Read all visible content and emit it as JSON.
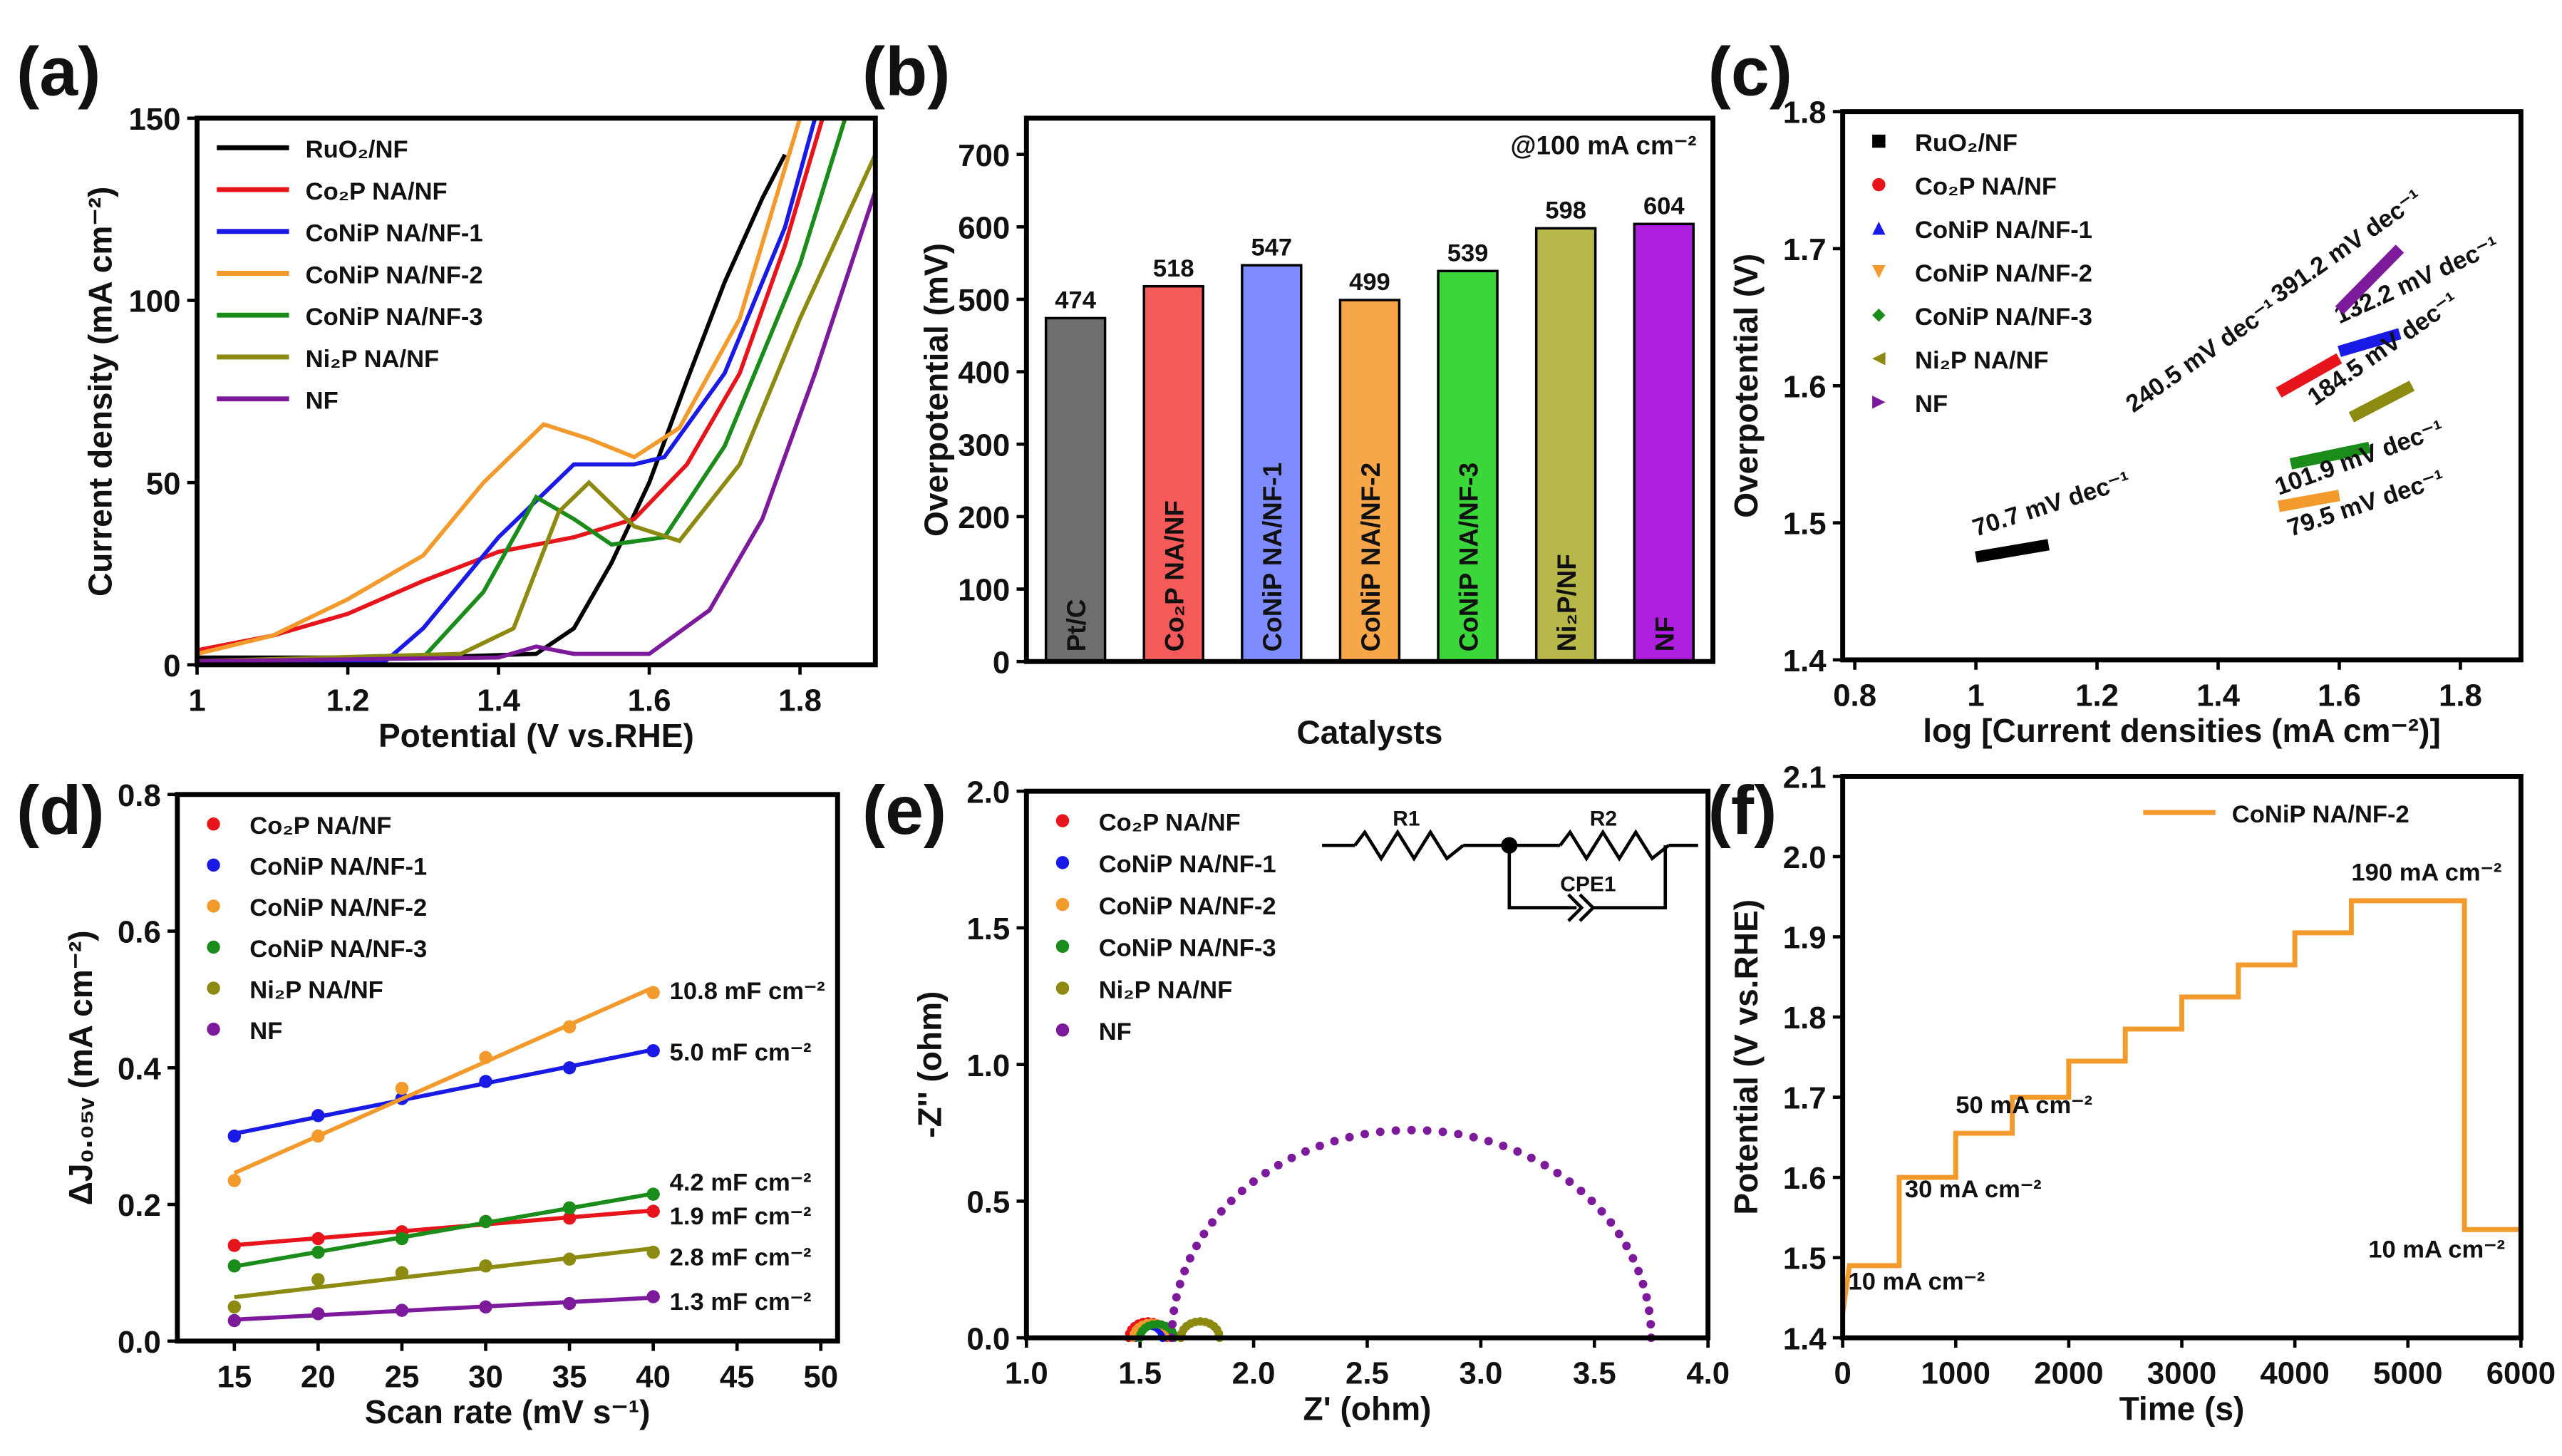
{
  "colors": {
    "RuO2": "#000000",
    "Co2P": "#e8141b",
    "CoNiP1": "#1a1ae6",
    "CoNiP2": "#f39a2c",
    "CoNiP3": "#1a8c1a",
    "Ni2P": "#8c8a10",
    "NF": "#7d1a9c"
  },
  "chart_data": [
    {
      "panel": "(a)",
      "type": "line",
      "xlabel": "Potential (V vs.RHE)",
      "ylabel": "Current density (mA cm⁻²)",
      "xlim": [
        1.0,
        1.9
      ],
      "ylim": [
        0,
        150
      ],
      "xticks": [
        1.0,
        1.2,
        1.4,
        1.6,
        1.8
      ],
      "yticks": [
        0,
        50,
        100,
        150
      ],
      "legend": "top-left",
      "series": [
        {
          "name": "RuO₂/NF",
          "color": "#000000",
          "points": [
            [
              1.0,
              2
            ],
            [
              1.3,
              2
            ],
            [
              1.45,
              3
            ],
            [
              1.5,
              10
            ],
            [
              1.55,
              28
            ],
            [
              1.6,
              50
            ],
            [
              1.65,
              78
            ],
            [
              1.7,
              105
            ],
            [
              1.75,
              128
            ],
            [
              1.78,
              140
            ]
          ]
        },
        {
          "name": "Co₂P NA/NF",
          "color": "#e8141b",
          "points": [
            [
              1.0,
              4
            ],
            [
              1.1,
              8
            ],
            [
              1.2,
              14
            ],
            [
              1.3,
              23
            ],
            [
              1.4,
              31
            ],
            [
              1.5,
              35
            ],
            [
              1.58,
              40
            ],
            [
              1.65,
              55
            ],
            [
              1.72,
              80
            ],
            [
              1.78,
              115
            ],
            [
              1.83,
              150
            ]
          ]
        },
        {
          "name": "CoNiP NA/NF-1",
          "color": "#1a1ae6",
          "points": [
            [
              1.0,
              1
            ],
            [
              1.25,
              1
            ],
            [
              1.3,
              10
            ],
            [
              1.4,
              35
            ],
            [
              1.5,
              55
            ],
            [
              1.58,
              55
            ],
            [
              1.62,
              57
            ],
            [
              1.7,
              80
            ],
            [
              1.78,
              120
            ],
            [
              1.82,
              150
            ]
          ]
        },
        {
          "name": "CoNiP NA/NF-2",
          "color": "#f39a2c",
          "points": [
            [
              1.0,
              3
            ],
            [
              1.1,
              8
            ],
            [
              1.2,
              18
            ],
            [
              1.3,
              30
            ],
            [
              1.38,
              50
            ],
            [
              1.46,
              66
            ],
            [
              1.52,
              62
            ],
            [
              1.58,
              57
            ],
            [
              1.64,
              65
            ],
            [
              1.72,
              95
            ],
            [
              1.8,
              150
            ]
          ]
        },
        {
          "name": "CoNiP NA/NF-3",
          "color": "#1a8c1a",
          "points": [
            [
              1.0,
              1
            ],
            [
              1.3,
              2
            ],
            [
              1.38,
              20
            ],
            [
              1.45,
              46
            ],
            [
              1.5,
              40
            ],
            [
              1.55,
              33
            ],
            [
              1.62,
              35
            ],
            [
              1.7,
              60
            ],
            [
              1.8,
              110
            ],
            [
              1.86,
              150
            ]
          ]
        },
        {
          "name": "Ni₂P NA/NF",
          "color": "#8c8a10",
          "points": [
            [
              1.0,
              1
            ],
            [
              1.35,
              3
            ],
            [
              1.42,
              10
            ],
            [
              1.48,
              42
            ],
            [
              1.52,
              50
            ],
            [
              1.58,
              38
            ],
            [
              1.64,
              34
            ],
            [
              1.72,
              55
            ],
            [
              1.8,
              95
            ],
            [
              1.9,
              140
            ]
          ]
        },
        {
          "name": "NF",
          "color": "#7d1a9c",
          "points": [
            [
              1.0,
              1
            ],
            [
              1.4,
              2
            ],
            [
              1.45,
              5
            ],
            [
              1.5,
              3
            ],
            [
              1.6,
              3
            ],
            [
              1.68,
              15
            ],
            [
              1.75,
              40
            ],
            [
              1.82,
              80
            ],
            [
              1.9,
              130
            ]
          ]
        }
      ]
    },
    {
      "panel": "(b)",
      "type": "bar",
      "xlabel": "Catalysts",
      "ylabel": "Overpotential (mV)",
      "ylim": [
        0,
        750
      ],
      "yticks": [
        0,
        100,
        200,
        300,
        400,
        500,
        600,
        700
      ],
      "annotation": "@100 mA cm⁻²",
      "categories": [
        "Pt/C",
        "Co₂P NA/NF",
        "CoNiP NA/NF-1",
        "CoNiP NA/NF-2",
        "CoNiP NA/NF-3",
        "Ni₂P/NF",
        "NF"
      ],
      "values": [
        474,
        518,
        547,
        499,
        539,
        598,
        604
      ],
      "bar_colors": [
        "#6e6e6e",
        "#f55a5a",
        "#7f8cff",
        "#f7a64a",
        "#3ad63a",
        "#b8b84a",
        "#b01ee0"
      ]
    },
    {
      "panel": "(c)",
      "type": "line",
      "xlabel": "log [Current densities (mA cm⁻²)]",
      "ylabel": "Overpotential (V)",
      "xlim": [
        0.78,
        1.9
      ],
      "ylim": [
        1.4,
        1.8
      ],
      "xticks": [
        0.8,
        1.0,
        1.2,
        1.4,
        1.6,
        1.8
      ],
      "yticks": [
        1.4,
        1.5,
        1.6,
        1.7,
        1.8
      ],
      "legend": "top-left",
      "series": [
        {
          "name": "RuO₂/NF",
          "color": "#000000",
          "marker": "square",
          "points": [
            [
              1.0,
              1.475
            ],
            [
              1.12,
              1.484
            ]
          ],
          "label": "70.7 mV dec⁻¹",
          "label_at": [
            1.0,
            1.49
          ]
        },
        {
          "name": "Co₂P NA/NF",
          "color": "#e8141b",
          "marker": "circle",
          "points": [
            [
              1.5,
              1.595
            ],
            [
              1.6,
              1.62
            ]
          ],
          "label": "240.5 mV dec⁻¹",
          "label_at": [
            1.26,
            1.58
          ]
        },
        {
          "name": "CoNiP NA/NF-1",
          "color": "#1a1ae6",
          "marker": "triangle-up",
          "points": [
            [
              1.6,
              1.625
            ],
            [
              1.7,
              1.638
            ]
          ],
          "label": "132.2 mV dec⁻¹",
          "label_at": [
            1.6,
            1.645
          ]
        },
        {
          "name": "CoNiP NA/NF-2",
          "color": "#f39a2c",
          "marker": "triangle-down",
          "points": [
            [
              1.5,
              1.512
            ],
            [
              1.6,
              1.52
            ]
          ],
          "label": "79.5 mV dec⁻¹",
          "label_at": [
            1.52,
            1.49
          ]
        },
        {
          "name": "CoNiP NA/NF-3",
          "color": "#1a8c1a",
          "marker": "diamond",
          "points": [
            [
              1.52,
              1.543
            ],
            [
              1.65,
              1.555
            ]
          ],
          "label": "101.9 mV dec⁻¹",
          "label_at": [
            1.5,
            1.52
          ]
        },
        {
          "name": "Ni₂P NA/NF",
          "color": "#8c8a10",
          "marker": "triangle-left",
          "points": [
            [
              1.62,
              1.577
            ],
            [
              1.72,
              1.6
            ]
          ],
          "label": "184.5 mV dec⁻¹",
          "label_at": [
            1.56,
            1.585
          ]
        },
        {
          "name": "NF",
          "color": "#7d1a9c",
          "marker": "triangle-right",
          "points": [
            [
              1.6,
              1.655
            ],
            [
              1.7,
              1.7
            ]
          ],
          "label": "391.2 mV dec⁻¹",
          "label_at": [
            1.5,
            1.66
          ]
        }
      ]
    },
    {
      "panel": "(d)",
      "type": "scatter",
      "xlabel": "Scan rate (mV s⁻¹)",
      "ylabel": "ΔJ₀.₀₅ᵥ (mA cm⁻²)",
      "xlim": [
        11.6,
        51
      ],
      "ylim": [
        0,
        0.8
      ],
      "xticks": [
        15,
        20,
        25,
        30,
        35,
        40,
        45,
        50
      ],
      "yticks": [
        0.0,
        0.2,
        0.4,
        0.6,
        0.8
      ],
      "ytick_decimals": 1,
      "legend": "top-left",
      "x": [
        15,
        20,
        25,
        30,
        35,
        40
      ],
      "series": [
        {
          "name": "Co₂P NA/NF",
          "color": "#e8141b",
          "values": [
            0.14,
            0.15,
            0.16,
            0.175,
            0.18,
            0.19
          ],
          "label": "1.9 mF cm⁻²",
          "label_y": 0.185
        },
        {
          "name": "CoNiP NA/NF-1",
          "color": "#1a1ae6",
          "values": [
            0.3,
            0.33,
            0.355,
            0.38,
            0.4,
            0.425
          ],
          "label": "5.0 mF cm⁻²",
          "label_y": 0.425
        },
        {
          "name": "CoNiP NA/NF-2",
          "color": "#f39a2c",
          "values": [
            0.235,
            0.3,
            0.37,
            0.415,
            0.46,
            0.51
          ],
          "label": "10.8 mF cm⁻²",
          "label_y": 0.515
        },
        {
          "name": "CoNiP NA/NF-3",
          "color": "#1a8c1a",
          "values": [
            0.11,
            0.13,
            0.15,
            0.175,
            0.195,
            0.215
          ],
          "label": "4.2 mF cm⁻²",
          "label_y": 0.235
        },
        {
          "name": "Ni₂P NA/NF",
          "color": "#8c8a10",
          "values": [
            0.05,
            0.09,
            0.1,
            0.11,
            0.12,
            0.13
          ],
          "label": "2.8 mF cm⁻²",
          "label_y": 0.125
        },
        {
          "name": "NF",
          "color": "#7d1a9c",
          "values": [
            0.03,
            0.04,
            0.045,
            0.05,
            0.055,
            0.065
          ],
          "label": "1.3 mF cm⁻²",
          "label_y": 0.06
        }
      ]
    },
    {
      "panel": "(e)",
      "type": "scatter",
      "xlabel": "Z' (ohm)",
      "ylabel": "-Z'' (ohm)",
      "xlim": [
        1.0,
        4.0
      ],
      "ylim": [
        0,
        2.0
      ],
      "xticks": [
        1.0,
        1.5,
        2.0,
        2.5,
        3.0,
        3.5,
        4.0
      ],
      "yticks": [
        0.0,
        0.5,
        1.0,
        1.5,
        2.0
      ],
      "ytick_decimals": 1,
      "xtick_decimals": 1,
      "legend": "top-left",
      "circuit": {
        "r1": "R1",
        "r2": "R2",
        "cpe": "CPE1"
      },
      "series": [
        {
          "name": "Co₂P NA/NF",
          "color": "#e8141b",
          "arc": [
            1.45,
            1.62,
            0.06
          ]
        },
        {
          "name": "CoNiP NA/NF-1",
          "color": "#1a1ae6",
          "arc": [
            1.48,
            1.6,
            0.045
          ]
        },
        {
          "name": "CoNiP NA/NF-2",
          "color": "#f39a2c",
          "arc": [
            1.47,
            1.63,
            0.055
          ]
        },
        {
          "name": "CoNiP NA/NF-3",
          "color": "#1a8c1a",
          "arc": [
            1.5,
            1.65,
            0.05
          ]
        },
        {
          "name": "Ni₂P NA/NF",
          "color": "#8c8a10",
          "arc": [
            1.68,
            1.85,
            0.06
          ]
        },
        {
          "name": "NF",
          "color": "#7d1a9c",
          "arc": [
            1.64,
            3.75,
            0.76
          ]
        }
      ]
    },
    {
      "panel": "(f)",
      "type": "line",
      "xlabel": "Time (s)",
      "ylabel": "Potential (V vs.RHE)",
      "xlim": [
        0,
        6000
      ],
      "ylim": [
        1.4,
        2.1
      ],
      "xticks": [
        0,
        1000,
        2000,
        3000,
        4000,
        5000,
        6000
      ],
      "yticks": [
        1.4,
        1.5,
        1.6,
        1.7,
        1.8,
        1.9,
        2.0,
        2.1
      ],
      "ytick_decimals": 1,
      "legend": "top-right",
      "series": [
        {
          "name": "CoNiP NA/NF-2",
          "color": "#f39a2c",
          "steps": [
            [
              0,
              500,
              1.49
            ],
            [
              500,
              1000,
              1.6
            ],
            [
              1000,
              1500,
              1.655
            ],
            [
              1500,
              2000,
              1.7
            ],
            [
              2000,
              2500,
              1.745
            ],
            [
              2500,
              3000,
              1.785
            ],
            [
              3000,
              3500,
              1.825
            ],
            [
              3500,
              4000,
              1.865
            ],
            [
              4000,
              4500,
              1.905
            ],
            [
              4500,
              5500,
              1.945
            ],
            [
              5500,
              6000,
              1.535
            ]
          ]
        }
      ],
      "annotations": [
        {
          "text": "10 mA cm⁻²",
          "at": [
            50,
            1.46
          ]
        },
        {
          "text": "30 mA cm⁻²",
          "at": [
            550,
            1.575
          ]
        },
        {
          "text": "50 mA cm⁻²",
          "at": [
            1000,
            1.68
          ]
        },
        {
          "text": "190 mA cm⁻²",
          "at": [
            4500,
            1.97
          ]
        },
        {
          "text": "10 mA cm⁻²",
          "at": [
            4650,
            1.5
          ]
        }
      ]
    }
  ]
}
